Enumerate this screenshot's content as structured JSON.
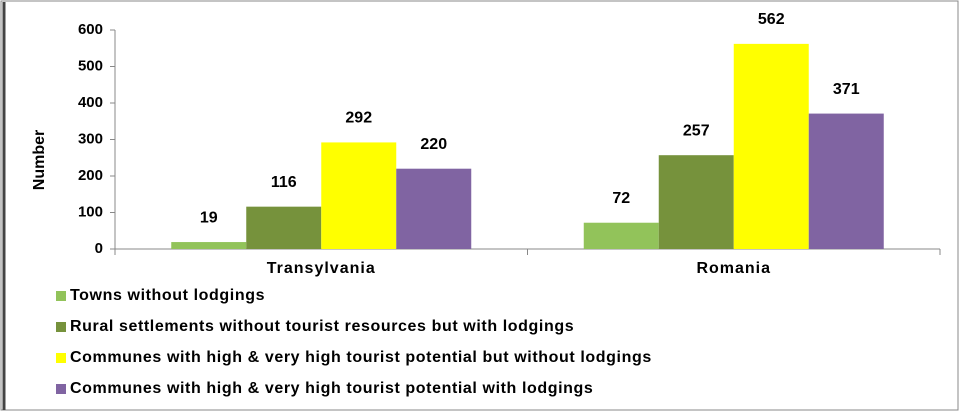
{
  "chart_data": {
    "type": "bar",
    "y_label": "Number",
    "categories": [
      "Transylvania",
      "Romania"
    ],
    "series": [
      {
        "name": "Towns without lodgings",
        "color": "#92c35a",
        "values": [
          19,
          72
        ]
      },
      {
        "name": "Rural settlements without tourist resources but with lodgings",
        "color": "#76923c",
        "values": [
          116,
          257
        ]
      },
      {
        "name": "Communes with high & very high tourist potential but without lodgings",
        "color": "#ffff00",
        "values": [
          292,
          562
        ]
      },
      {
        "name": "Communes with high & very high tourist potential with lodgings",
        "color": "#8064a2",
        "values": [
          220,
          371
        ]
      }
    ],
    "ylim": [
      0,
      600
    ],
    "yticks": [
      0,
      100,
      200,
      300,
      400,
      500,
      600
    ],
    "grid": false,
    "legend": "bottom"
  }
}
